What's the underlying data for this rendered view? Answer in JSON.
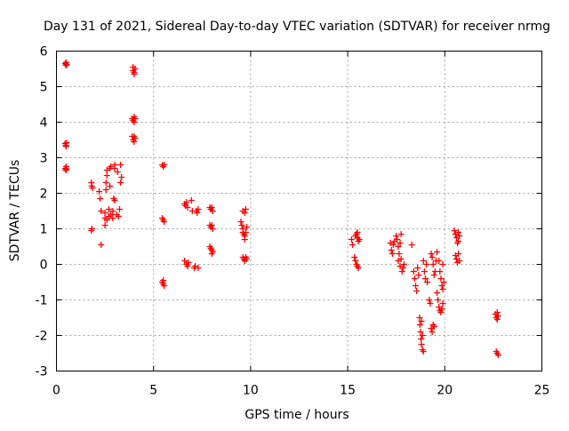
{
  "chart_data": {
    "type": "scatter",
    "title": "Day 131 of 2021, Sidereal Day-to-day VTEC variation (SDTVAR) for receiver nrmg",
    "xlabel": "GPS time / hours",
    "ylabel": "SDTVAR / TECUs",
    "xlim": [
      0,
      25
    ],
    "ylim": [
      -3,
      6
    ],
    "x_ticks": [
      "0",
      "5",
      "10",
      "15",
      "20",
      "25"
    ],
    "y_ticks": [
      "-3",
      "-2",
      "-1",
      "0",
      "1",
      "2",
      "3",
      "4",
      "5",
      "6"
    ],
    "grid": true,
    "marker": "+",
    "color": "#ff0000",
    "series": [
      {
        "name": "nrmg",
        "points": [
          [
            0.45,
            5.65
          ],
          [
            0.48,
            5.6
          ],
          [
            0.5,
            5.68
          ],
          [
            0.52,
            5.62
          ],
          [
            0.45,
            3.4
          ],
          [
            0.48,
            3.35
          ],
          [
            0.5,
            3.32
          ],
          [
            0.52,
            3.42
          ],
          [
            0.45,
            2.7
          ],
          [
            0.48,
            2.65
          ],
          [
            0.5,
            2.75
          ],
          [
            0.52,
            2.68
          ],
          [
            1.8,
            2.3
          ],
          [
            1.82,
            2.2
          ],
          [
            1.85,
            2.15
          ],
          [
            1.8,
            0.95
          ],
          [
            1.83,
            1.0
          ],
          [
            2.2,
            2.05
          ],
          [
            2.25,
            1.85
          ],
          [
            2.3,
            1.5
          ],
          [
            2.3,
            0.55
          ],
          [
            2.5,
            1.1
          ],
          [
            2.5,
            1.3
          ],
          [
            2.5,
            1.45
          ],
          [
            2.55,
            2.1
          ],
          [
            2.55,
            2.3
          ],
          [
            2.6,
            2.5
          ],
          [
            2.6,
            2.65
          ],
          [
            2.6,
            1.25
          ],
          [
            2.7,
            1.35
          ],
          [
            2.7,
            1.55
          ],
          [
            2.75,
            2.7
          ],
          [
            2.75,
            2.2
          ],
          [
            2.8,
            1.4
          ],
          [
            2.8,
            2.75
          ],
          [
            2.9,
            1.3
          ],
          [
            2.9,
            1.5
          ],
          [
            2.95,
            1.85
          ],
          [
            3.0,
            2.8
          ],
          [
            3.0,
            2.7
          ],
          [
            3.0,
            1.8
          ],
          [
            3.1,
            1.4
          ],
          [
            3.15,
            2.6
          ],
          [
            3.2,
            1.35
          ],
          [
            3.25,
            1.55
          ],
          [
            3.3,
            2.3
          ],
          [
            3.3,
            2.8
          ],
          [
            3.35,
            2.45
          ],
          [
            3.95,
            5.55
          ],
          [
            3.95,
            5.45
          ],
          [
            4.0,
            5.4
          ],
          [
            4.0,
            5.35
          ],
          [
            4.05,
            5.5
          ],
          [
            3.9,
            4.1
          ],
          [
            3.95,
            4.05
          ],
          [
            4.0,
            4.15
          ],
          [
            4.05,
            4.1
          ],
          [
            4.0,
            4.0
          ],
          [
            3.9,
            3.6
          ],
          [
            3.95,
            3.5
          ],
          [
            4.0,
            3.45
          ],
          [
            4.05,
            3.55
          ],
          [
            4.0,
            3.6
          ],
          [
            5.45,
            2.8
          ],
          [
            5.5,
            2.75
          ],
          [
            5.55,
            2.8
          ],
          [
            5.45,
            1.3
          ],
          [
            5.5,
            1.25
          ],
          [
            5.55,
            1.2
          ],
          [
            5.45,
            -0.5
          ],
          [
            5.5,
            -0.55
          ],
          [
            5.55,
            -0.6
          ],
          [
            5.5,
            -0.45
          ],
          [
            6.6,
            1.7
          ],
          [
            6.65,
            1.65
          ],
          [
            6.7,
            1.75
          ],
          [
            6.75,
            1.6
          ],
          [
            6.6,
            0.1
          ],
          [
            6.7,
            0.0
          ],
          [
            6.75,
            -0.05
          ],
          [
            6.8,
            0.05
          ],
          [
            6.95,
            1.8
          ],
          [
            7.0,
            1.5
          ],
          [
            7.1,
            -0.1
          ],
          [
            7.15,
            -0.05
          ],
          [
            7.2,
            1.5
          ],
          [
            7.25,
            1.45
          ],
          [
            7.3,
            1.55
          ],
          [
            7.3,
            -0.1
          ],
          [
            7.9,
            1.6
          ],
          [
            7.95,
            1.55
          ],
          [
            8.0,
            1.6
          ],
          [
            8.05,
            1.5
          ],
          [
            7.9,
            1.1
          ],
          [
            7.95,
            1.05
          ],
          [
            8.0,
            1.1
          ],
          [
            8.05,
            1.0
          ],
          [
            7.9,
            0.5
          ],
          [
            7.95,
            0.45
          ],
          [
            8.0,
            0.4
          ],
          [
            8.05,
            0.35
          ],
          [
            8.0,
            0.3
          ],
          [
            9.5,
            1.2
          ],
          [
            9.55,
            1.1
          ],
          [
            9.6,
            1.0
          ],
          [
            9.6,
            0.9
          ],
          [
            9.65,
            0.85
          ],
          [
            9.7,
            0.8
          ],
          [
            9.75,
            0.9
          ],
          [
            9.8,
            1.05
          ],
          [
            9.7,
            0.7
          ],
          [
            9.6,
            1.5
          ],
          [
            9.7,
            1.45
          ],
          [
            9.75,
            1.55
          ],
          [
            9.6,
            0.2
          ],
          [
            9.65,
            0.15
          ],
          [
            9.7,
            0.1
          ],
          [
            9.75,
            0.2
          ],
          [
            9.8,
            0.15
          ],
          [
            15.2,
            0.7
          ],
          [
            15.25,
            0.55
          ],
          [
            15.4,
            0.8
          ],
          [
            15.45,
            0.85
          ],
          [
            15.5,
            0.75
          ],
          [
            15.55,
            0.65
          ],
          [
            15.6,
            0.7
          ],
          [
            15.5,
            0.9
          ],
          [
            15.35,
            0.2
          ],
          [
            15.4,
            0.1
          ],
          [
            15.45,
            0.0
          ],
          [
            15.5,
            -0.05
          ],
          [
            15.55,
            -0.1
          ],
          [
            17.2,
            0.6
          ],
          [
            17.25,
            0.4
          ],
          [
            17.3,
            0.3
          ],
          [
            17.35,
            0.55
          ],
          [
            17.4,
            0.65
          ],
          [
            17.5,
            0.8
          ],
          [
            17.55,
            0.7
          ],
          [
            17.6,
            0.5
          ],
          [
            17.65,
            0.3
          ],
          [
            17.7,
            0.6
          ],
          [
            17.75,
            0.85
          ],
          [
            17.6,
            0.1
          ],
          [
            17.7,
            -0.05
          ],
          [
            17.75,
            0.15
          ],
          [
            17.8,
            -0.2
          ],
          [
            17.85,
            -0.1
          ],
          [
            17.9,
            0.0
          ],
          [
            18.3,
            0.55
          ],
          [
            18.4,
            -0.2
          ],
          [
            18.45,
            -0.4
          ],
          [
            18.5,
            -0.6
          ],
          [
            18.55,
            -0.75
          ],
          [
            18.6,
            -0.1
          ],
          [
            18.65,
            -0.3
          ],
          [
            18.7,
            -1.5
          ],
          [
            18.72,
            -1.7
          ],
          [
            18.75,
            -1.9
          ],
          [
            18.78,
            -2.1
          ],
          [
            18.8,
            -2.25
          ],
          [
            18.85,
            -2.4
          ],
          [
            18.9,
            -2.45
          ],
          [
            18.8,
            -1.6
          ],
          [
            18.85,
            -2.0
          ],
          [
            18.9,
            0.1
          ],
          [
            18.95,
            -0.2
          ],
          [
            19.0,
            -0.4
          ],
          [
            19.05,
            0.0
          ],
          [
            19.1,
            -0.5
          ],
          [
            19.2,
            -1.0
          ],
          [
            19.25,
            -1.1
          ],
          [
            19.3,
            -1.8
          ],
          [
            19.35,
            -1.9
          ],
          [
            19.4,
            -1.7
          ],
          [
            19.45,
            -1.75
          ],
          [
            19.3,
            0.3
          ],
          [
            19.35,
            0.2
          ],
          [
            19.4,
            0.0
          ],
          [
            19.45,
            -0.3
          ],
          [
            19.5,
            -0.2
          ],
          [
            19.55,
            0.1
          ],
          [
            19.6,
            -0.8
          ],
          [
            19.65,
            -1.0
          ],
          [
            19.7,
            -1.2
          ],
          [
            19.75,
            -1.3
          ],
          [
            19.8,
            -1.35
          ],
          [
            19.85,
            -1.25
          ],
          [
            19.9,
            -1.1
          ],
          [
            19.6,
            0.35
          ],
          [
            19.7,
            0.1
          ],
          [
            19.75,
            -0.2
          ],
          [
            19.8,
            -0.4
          ],
          [
            19.85,
            -0.6
          ],
          [
            19.9,
            -0.7
          ],
          [
            19.95,
            -0.5
          ],
          [
            19.9,
            0.0
          ],
          [
            20.5,
            0.95
          ],
          [
            20.55,
            0.85
          ],
          [
            20.6,
            0.75
          ],
          [
            20.65,
            0.6
          ],
          [
            20.7,
            0.65
          ],
          [
            20.75,
            0.8
          ],
          [
            20.7,
            0.9
          ],
          [
            20.55,
            0.25
          ],
          [
            20.6,
            0.15
          ],
          [
            20.65,
            0.05
          ],
          [
            20.7,
            0.3
          ],
          [
            20.75,
            0.1
          ],
          [
            22.6,
            -1.4
          ],
          [
            22.65,
            -1.5
          ],
          [
            22.7,
            -1.55
          ],
          [
            22.75,
            -1.45
          ],
          [
            22.7,
            -1.35
          ],
          [
            22.65,
            -2.45
          ],
          [
            22.7,
            -2.5
          ],
          [
            22.75,
            -2.55
          ]
        ]
      }
    ]
  }
}
